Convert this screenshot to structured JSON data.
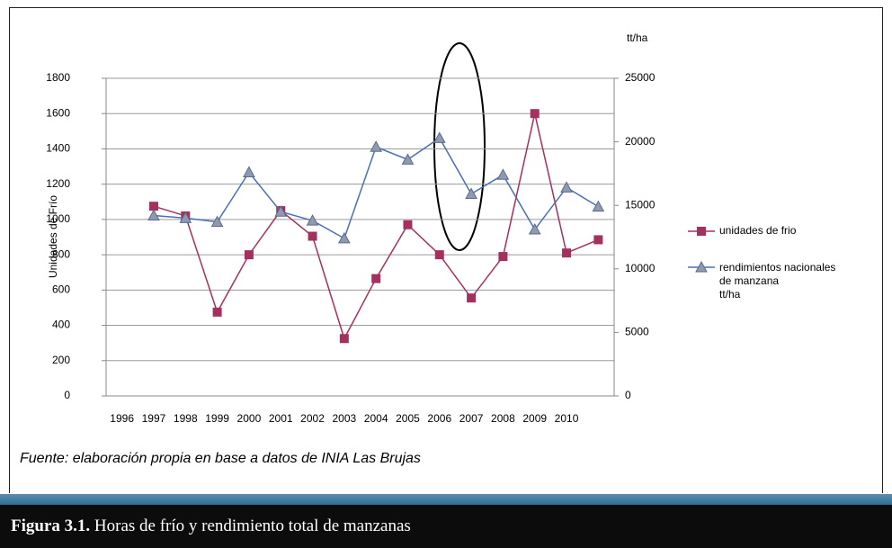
{
  "chart_data": {
    "type": "line",
    "y_label": "Unidades de Frío",
    "y2_label": "tt/ha",
    "categories": [
      "1996",
      "1997",
      "1998",
      "1999",
      "2000",
      "2001",
      "2002",
      "2003",
      "2004",
      "2005",
      "2006",
      "2007",
      "2008",
      "2009",
      "2010",
      null
    ],
    "ylim": [
      0,
      1800
    ],
    "yticks": [
      0,
      200,
      400,
      600,
      800,
      1000,
      1200,
      1400,
      1600,
      1800
    ],
    "y2lim": [
      0,
      25000
    ],
    "y2ticks": [
      0,
      5000,
      10000,
      15000,
      20000,
      25000
    ],
    "grid": true,
    "series": [
      {
        "name": "unidades de frio",
        "color": "#a3305f",
        "axis": "y",
        "marker": "square",
        "values": [
          null,
          1075,
          1020,
          475,
          800,
          1050,
          905,
          325,
          665,
          970,
          800,
          555,
          790,
          1600,
          810,
          885
        ]
      },
      {
        "name": "rendimientos nacionales\nde manzana\ntt/ha",
        "color": "#4a6fb5",
        "axis": "y2",
        "marker": "triangle",
        "values": [
          null,
          14200,
          14000,
          13700,
          17600,
          14500,
          13800,
          12400,
          19600,
          18600,
          20300,
          15900,
          17400,
          13100,
          16400,
          14900
        ]
      }
    ]
  },
  "source": "Fuente: elaboración propia en base a datos de INIA Las Brujas",
  "caption": {
    "label": "Figura 3.1.",
    "text": " Horas de frío y rendimiento total de manzanas"
  }
}
